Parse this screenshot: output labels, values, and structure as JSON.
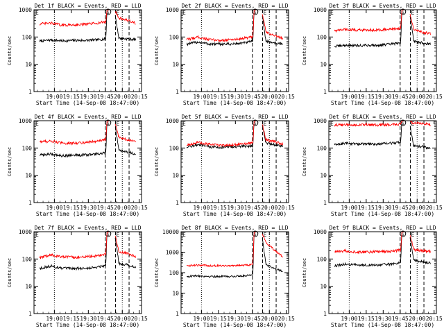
{
  "figure": {
    "background": "#ffffff",
    "colors": {
      "events": "#000000",
      "lld": "#ff0000",
      "axes": "#000000"
    }
  },
  "chart_data": [
    {
      "type": "line",
      "title": "Det 1f BLACK = Events, RED = LLD",
      "xlabel": "Start Time (14-Sep-08 18:47:00)",
      "ylabel": "Counts/sec",
      "yscale": "log",
      "ylim": [
        1,
        1000
      ],
      "yticks": [
        "1",
        "10",
        "100",
        "1000"
      ],
      "xticks": [
        "19:00",
        "19:15",
        "19:30",
        "19:45",
        "20:00",
        "20:15"
      ],
      "markers": [
        "E",
        "S",
        "E"
      ],
      "series": [
        {
          "name": "Events",
          "color": "#000000",
          "x": [
            0,
            10,
            20,
            30,
            40,
            50,
            58.5,
            59.5,
            66,
            70,
            78,
            85
          ],
          "y": [
            70,
            78,
            72,
            75,
            75,
            78,
            85,
            1000,
            1000,
            90,
            85,
            80
          ]
        },
        {
          "name": "LLD",
          "color": "#ff0000",
          "x": [
            0,
            10,
            20,
            30,
            40,
            50,
            58.5,
            59.5,
            66,
            70,
            78,
            85
          ],
          "y": [
            300,
            320,
            270,
            280,
            290,
            320,
            360,
            1000,
            1000,
            500,
            400,
            320
          ]
        }
      ]
    },
    {
      "type": "line",
      "title": "Det 2f BLACK = Events, RED = LLD",
      "xlabel": "Start Time (14-Sep-08 18:47:00)",
      "ylabel": "Counts/sec",
      "yscale": "log",
      "ylim": [
        1,
        1000
      ],
      "yticks": [
        "1",
        "10",
        "100",
        "1000"
      ],
      "xticks": [
        "19:00",
        "19:15",
        "19:30",
        "19:45",
        "20:00",
        "20:15"
      ],
      "markers": [
        "E",
        "S",
        "E"
      ],
      "series": [
        {
          "name": "Events",
          "color": "#000000",
          "x": [
            0,
            10,
            20,
            30,
            40,
            50,
            58.5,
            59.5,
            66,
            70,
            78,
            85
          ],
          "y": [
            55,
            65,
            55,
            55,
            55,
            60,
            70,
            1000,
            1000,
            70,
            60,
            55
          ]
        },
        {
          "name": "LLD",
          "color": "#ff0000",
          "x": [
            0,
            10,
            20,
            30,
            40,
            50,
            58.5,
            59.5,
            66,
            70,
            78,
            85
          ],
          "y": [
            80,
            100,
            80,
            75,
            80,
            90,
            100,
            1000,
            1000,
            150,
            110,
            90
          ]
        }
      ]
    },
    {
      "type": "line",
      "title": "Det 3f BLACK = Events, RED = LLD",
      "xlabel": "Start Time (14-Sep-08 18:47:00)",
      "ylabel": "Counts/sec",
      "yscale": "log",
      "ylim": [
        1,
        1000
      ],
      "yticks": [
        "1",
        "10",
        "100",
        "1000"
      ],
      "xticks": [
        "19:00",
        "19:15",
        "19:30",
        "19:45",
        "20:00",
        "20:15"
      ],
      "markers": [
        "E",
        "S",
        "E"
      ],
      "series": [
        {
          "name": "Events",
          "color": "#000000",
          "x": [
            0,
            10,
            20,
            30,
            40,
            50,
            58.5,
            59.5,
            66,
            70,
            78,
            85
          ],
          "y": [
            45,
            50,
            48,
            50,
            50,
            55,
            60,
            1000,
            1000,
            70,
            60,
            55
          ]
        },
        {
          "name": "LLD",
          "color": "#ff0000",
          "x": [
            0,
            10,
            20,
            30,
            40,
            50,
            58.5,
            59.5,
            66,
            70,
            78,
            85
          ],
          "y": [
            170,
            190,
            180,
            180,
            185,
            190,
            210,
            1000,
            1000,
            180,
            150,
            130
          ]
        }
      ]
    },
    {
      "type": "line",
      "title": "Det 4f BLACK = Events, RED = LLD",
      "xlabel": "Start Time (14-Sep-08 18:47:00)",
      "ylabel": "Counts/sec",
      "yscale": "log",
      "ylim": [
        1,
        1000
      ],
      "yticks": [
        "1",
        "10",
        "100",
        "1000"
      ],
      "xticks": [
        "19:00",
        "19:15",
        "19:30",
        "19:45",
        "20:00",
        "20:15"
      ],
      "markers": [
        "E",
        "S",
        "E"
      ],
      "series": [
        {
          "name": "Events",
          "color": "#000000",
          "x": [
            0,
            10,
            20,
            30,
            40,
            50,
            58.5,
            59.5,
            66,
            70,
            78,
            85
          ],
          "y": [
            55,
            60,
            52,
            55,
            55,
            60,
            65,
            1000,
            1000,
            80,
            70,
            60
          ]
        },
        {
          "name": "LLD",
          "color": "#ff0000",
          "x": [
            0,
            10,
            20,
            30,
            40,
            50,
            58.5,
            59.5,
            66,
            70,
            78,
            85
          ],
          "y": [
            170,
            180,
            150,
            150,
            160,
            175,
            200,
            1000,
            1000,
            250,
            200,
            180
          ]
        }
      ]
    },
    {
      "type": "line",
      "title": "Det 5f BLACK = Events, RED = LLD",
      "xlabel": "Start Time (14-Sep-08 18:47:00)",
      "ylabel": "Counts/sec",
      "yscale": "log",
      "ylim": [
        1,
        1000
      ],
      "yticks": [
        "1",
        "10",
        "100",
        "1000"
      ],
      "xticks": [
        "19:00",
        "19:15",
        "19:30",
        "19:45",
        "20:00",
        "20:15"
      ],
      "markers": [
        "E",
        "S",
        "E"
      ],
      "series": [
        {
          "name": "Events",
          "color": "#000000",
          "x": [
            0,
            10,
            20,
            30,
            40,
            50,
            58.5,
            59.5,
            66,
            70,
            78,
            85
          ],
          "y": [
            110,
            130,
            110,
            105,
            110,
            115,
            120,
            1000,
            1000,
            150,
            130,
            115
          ]
        },
        {
          "name": "LLD",
          "color": "#ff0000",
          "x": [
            0,
            10,
            20,
            30,
            40,
            50,
            58.5,
            59.5,
            66,
            70,
            78,
            85
          ],
          "y": [
            130,
            160,
            135,
            125,
            130,
            140,
            150,
            1000,
            1000,
            200,
            170,
            140
          ]
        }
      ]
    },
    {
      "type": "line",
      "title": "Det 6f BLACK = Events, RED = LLD",
      "xlabel": "Start Time (14-Sep-08 18:47:00)",
      "ylabel": "Counts/sec",
      "yscale": "log",
      "ylim": [
        1,
        1000
      ],
      "yticks": [
        "1",
        "10",
        "100",
        "1000"
      ],
      "xticks": [
        "19:00",
        "19:15",
        "19:30",
        "19:45",
        "20:00",
        "20:15"
      ],
      "markers": [
        "E",
        "S",
        "E"
      ],
      "series": [
        {
          "name": "Events",
          "color": "#000000",
          "x": [
            0,
            10,
            20,
            30,
            40,
            50,
            58.5,
            59.5,
            66,
            70,
            78,
            85
          ],
          "y": [
            130,
            150,
            140,
            140,
            140,
            150,
            160,
            1000,
            1000,
            120,
            110,
            100
          ]
        },
        {
          "name": "LLD",
          "color": "#ff0000",
          "x": [
            0,
            10,
            20,
            30,
            40,
            50,
            58.5,
            59.5,
            66,
            70,
            78,
            85
          ],
          "y": [
            700,
            700,
            700,
            700,
            700,
            720,
            750,
            1000,
            1000,
            800,
            780,
            700
          ]
        }
      ]
    },
    {
      "type": "line",
      "title": "Det 7f BLACK = Events, RED = LLD",
      "xlabel": "Start Time (14-Sep-08 18:47:00)",
      "ylabel": "Counts/sec",
      "yscale": "log",
      "ylim": [
        1,
        1000
      ],
      "yticks": [
        "1",
        "10",
        "100",
        "1000"
      ],
      "xticks": [
        "19:00",
        "19:15",
        "19:30",
        "19:45",
        "20:00",
        "20:15"
      ],
      "markers": [
        "E",
        "S",
        "E"
      ],
      "series": [
        {
          "name": "Events",
          "color": "#000000",
          "x": [
            0,
            10,
            20,
            30,
            40,
            50,
            58.5,
            59.5,
            66,
            70,
            78,
            85
          ],
          "y": [
            45,
            55,
            45,
            45,
            45,
            50,
            60,
            1000,
            1000,
            70,
            60,
            50
          ]
        },
        {
          "name": "LLD",
          "color": "#ff0000",
          "x": [
            0,
            10,
            20,
            30,
            40,
            50,
            58.5,
            59.5,
            66,
            70,
            78,
            85
          ],
          "y": [
            110,
            140,
            120,
            115,
            120,
            130,
            150,
            1000,
            1000,
            180,
            160,
            120
          ]
        }
      ]
    },
    {
      "type": "line",
      "title": "Det 8f BLACK = Events, RED = LLD",
      "xlabel": "Start Time (14-Sep-08 18:47:00)",
      "ylabel": "Counts/sec",
      "yscale": "log",
      "ylim": [
        1,
        10000
      ],
      "yticks": [
        "1",
        "10",
        "100",
        "1000",
        "10000"
      ],
      "xticks": [
        "19:00",
        "19:15",
        "19:30",
        "19:45",
        "20:00",
        "20:15"
      ],
      "markers": [
        "E",
        "S",
        "E"
      ],
      "series": [
        {
          "name": "Events",
          "color": "#000000",
          "x": [
            0,
            10,
            20,
            30,
            40,
            50,
            58.5,
            59.5,
            66,
            70,
            78,
            85
          ],
          "y": [
            65,
            70,
            65,
            65,
            65,
            70,
            80,
            10000,
            10000,
            250,
            150,
            120
          ]
        },
        {
          "name": "LLD",
          "color": "#ff0000",
          "x": [
            0,
            10,
            20,
            30,
            40,
            50,
            58.5,
            59.5,
            66,
            70,
            78,
            85
          ],
          "y": [
            220,
            230,
            220,
            220,
            220,
            230,
            250,
            10000,
            10000,
            3000,
            1200,
            600
          ]
        }
      ]
    },
    {
      "type": "line",
      "title": "Det 9f BLACK = Events, RED = LLD",
      "xlabel": "Start Time (14-Sep-08 18:47:00)",
      "ylabel": "Counts/sec",
      "yscale": "log",
      "ylim": [
        1,
        1000
      ],
      "yticks": [
        "1",
        "10",
        "100",
        "1000"
      ],
      "xticks": [
        "19:00",
        "19:15",
        "19:30",
        "19:45",
        "20:00",
        "20:15"
      ],
      "markers": [
        "E",
        "S",
        "E"
      ],
      "series": [
        {
          "name": "Events",
          "color": "#000000",
          "x": [
            0,
            10,
            20,
            30,
            40,
            50,
            58.5,
            59.5,
            66,
            70,
            78,
            85
          ],
          "y": [
            55,
            65,
            60,
            60,
            60,
            65,
            75,
            1000,
            1000,
            90,
            80,
            70
          ]
        },
        {
          "name": "LLD",
          "color": "#ff0000",
          "x": [
            0,
            10,
            20,
            30,
            40,
            50,
            58.5,
            59.5,
            66,
            70,
            78,
            85
          ],
          "y": [
            180,
            200,
            180,
            180,
            185,
            190,
            210,
            1000,
            1000,
            220,
            200,
            190
          ]
        }
      ]
    }
  ]
}
